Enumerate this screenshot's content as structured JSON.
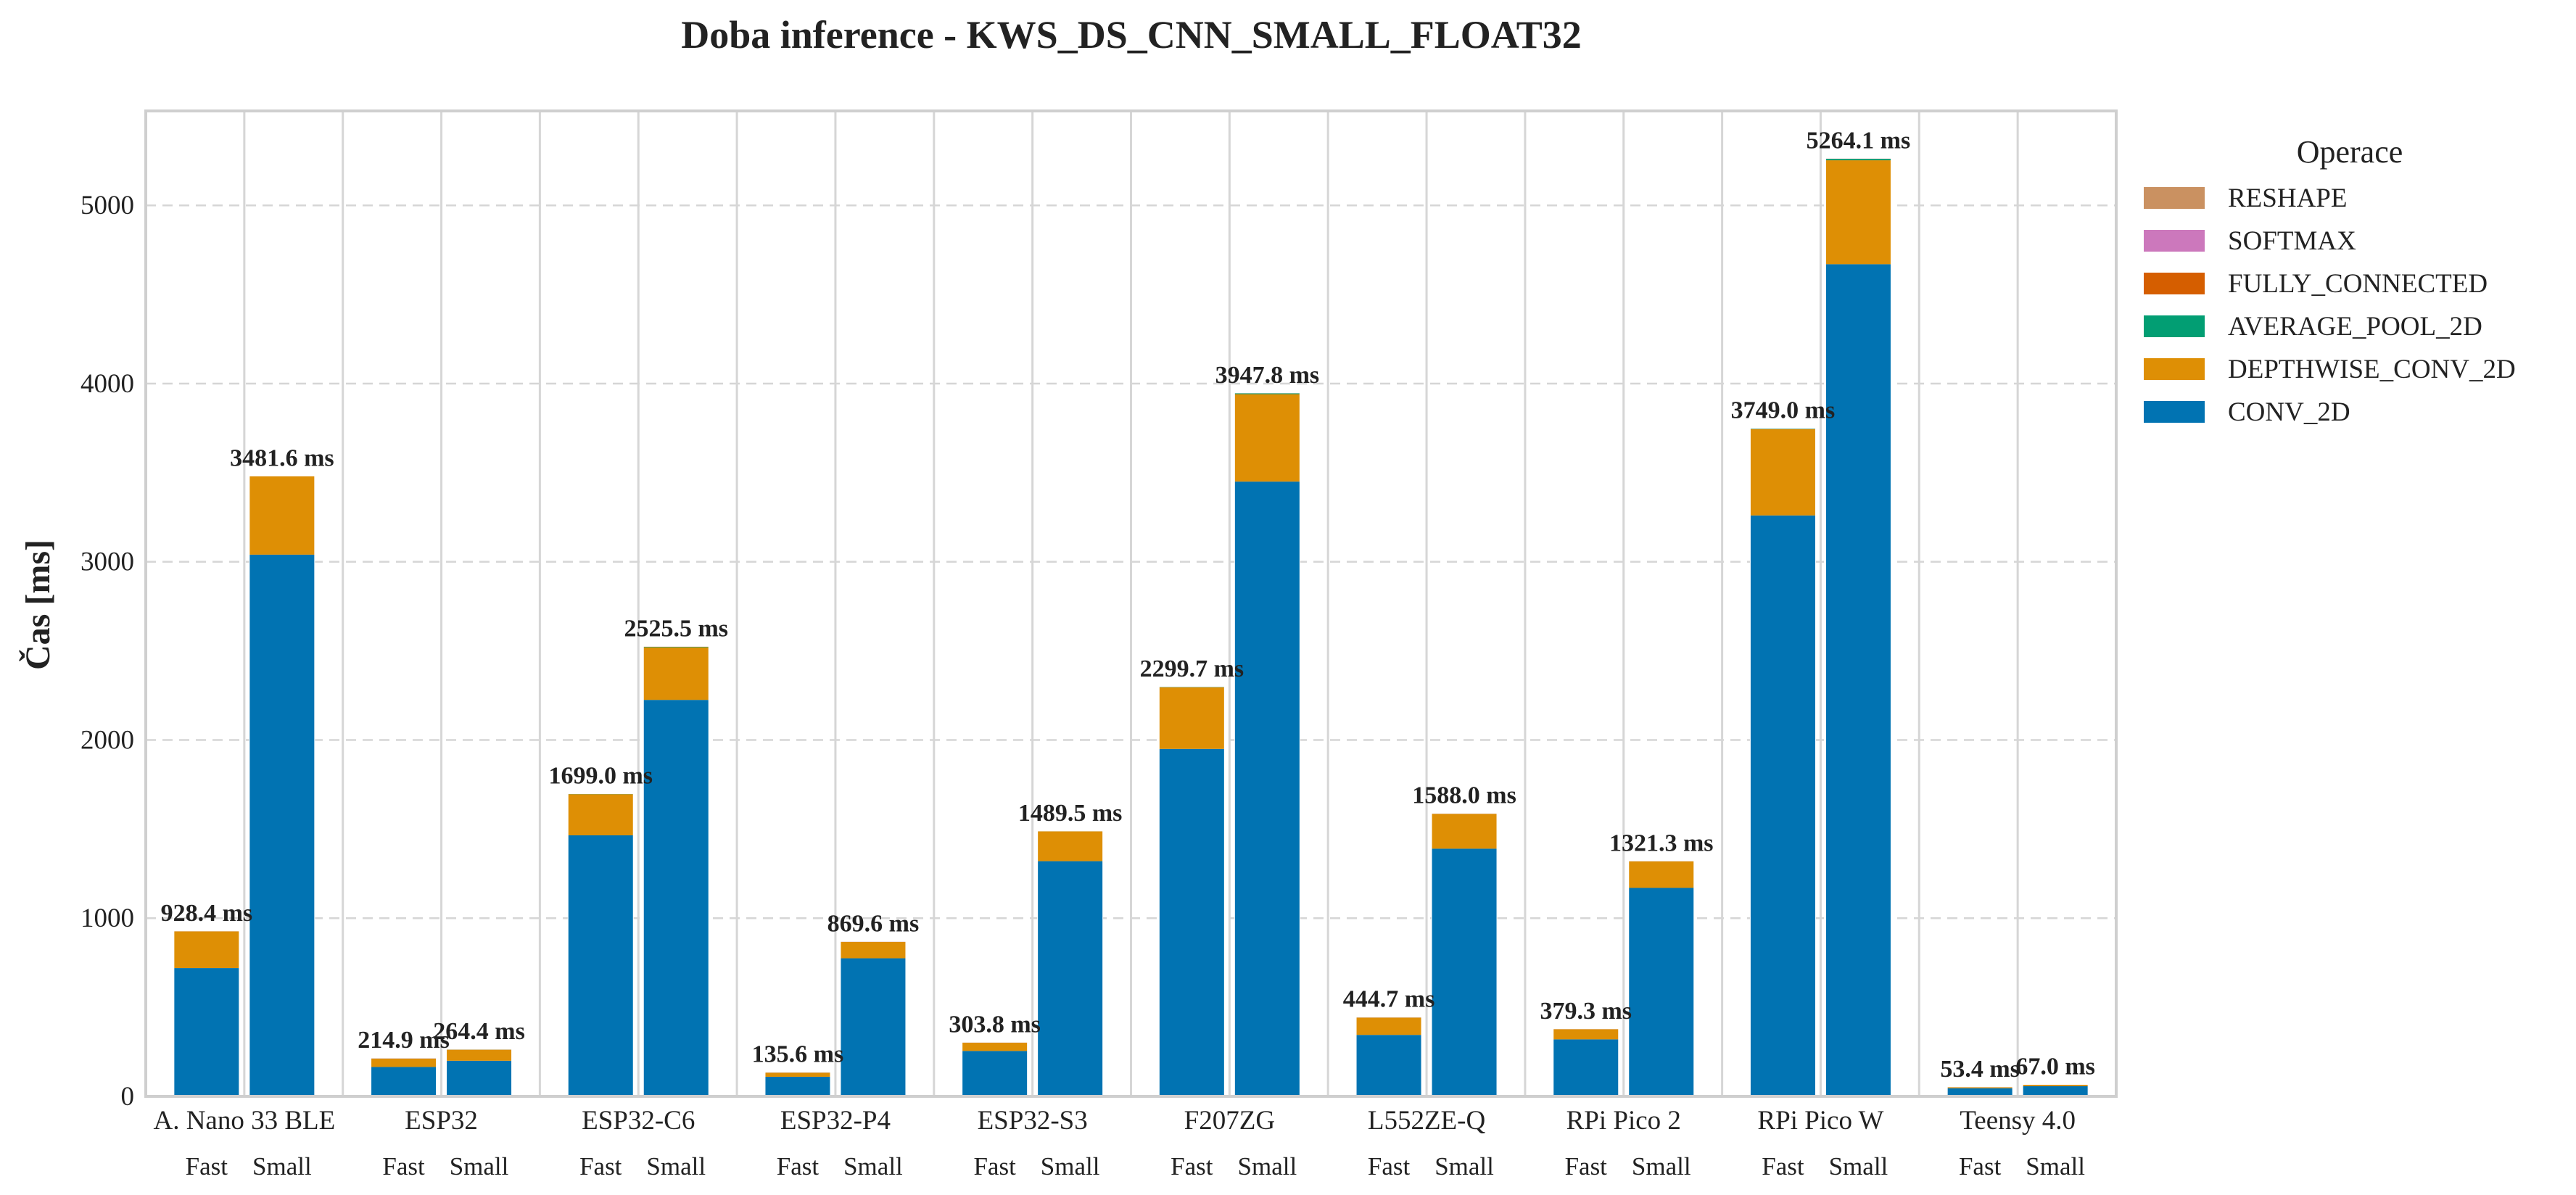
{
  "chart_data": {
    "type": "bar",
    "stacked": true,
    "title": "Doba inference - KWS_DS_CNN_SMALL_FLOAT32",
    "xlabel": "",
    "ylabel": "Čas [ms]",
    "ylim": [
      0,
      5530
    ],
    "yticks": [
      "0",
      "1000",
      "2000",
      "3000",
      "4000",
      "5000"
    ],
    "grid": "horizontal dashed",
    "legend": {
      "title": "Operace",
      "placement": "outside-right"
    },
    "categories": [
      "A. Nano 33 BLE",
      "ESP32",
      "ESP32-C6",
      "ESP32-P4",
      "ESP32-S3",
      "F207ZG",
      "L552ZE-Q",
      "RPi Pico 2",
      "RPi Pico W",
      "Teensy 4.0"
    ],
    "variants": [
      "Fast",
      "Small"
    ],
    "series": [
      {
        "name": "CONV_2D",
        "color": "#0173b2",
        "fast": [
          720,
          165,
          1465,
          110,
          255,
          1950,
          345,
          320,
          3260,
          46
        ],
        "small": [
          3040,
          200,
          2225,
          775,
          1320,
          3450,
          1390,
          1170,
          4670,
          57
        ]
      },
      {
        "name": "DEPTHWISE_CONV_2D",
        "color": "#de8f05",
        "fast": [
          206.4,
          48.4,
          231.0,
          24.7,
          48.2,
          345.7,
          98.6,
          58.7,
          484.0,
          7.1
        ],
        "small": [
          439.6,
          62.9,
          295.5,
          93.4,
          168.2,
          490.8,
          196.7,
          150.4,
          583.1,
          9.7
        ]
      },
      {
        "name": "AVERAGE_POOL_2D",
        "color": "#029e73",
        "fast": [
          1.8,
          1.3,
          2.0,
          0.8,
          0.4,
          3.0,
          0.8,
          0.4,
          4.0,
          0.2
        ],
        "small": [
          1.6,
          1.2,
          4.0,
          1.0,
          1.0,
          6.0,
          1.0,
          0.6,
          10.0,
          0.2
        ]
      },
      {
        "name": "FULLY_CONNECTED",
        "color": "#d55e00",
        "fast": [
          0.1,
          0.1,
          0.8,
          0.05,
          0.1,
          0.8,
          0.2,
          0.1,
          0.8,
          0.05
        ],
        "small": [
          0.3,
          0.2,
          0.8,
          0.1,
          0.2,
          0.8,
          0.2,
          0.2,
          0.8,
          0.05
        ]
      },
      {
        "name": "SOFTMAX",
        "color": "#cc78bc",
        "fast": [
          0.05,
          0.05,
          0.1,
          0.03,
          0.05,
          0.1,
          0.05,
          0.05,
          0.1,
          0.03
        ],
        "small": [
          0.05,
          0.05,
          0.1,
          0.03,
          0.05,
          0.1,
          0.05,
          0.05,
          0.1,
          0.03
        ]
      },
      {
        "name": "RESHAPE",
        "color": "#ca9161",
        "fast": [
          0.05,
          0.05,
          0.1,
          0.02,
          0.05,
          0.1,
          0.05,
          0.05,
          0.1,
          0.02
        ],
        "small": [
          0.05,
          0.05,
          0.1,
          0.02,
          0.05,
          0.1,
          0.05,
          0.05,
          0.1,
          0.02
        ]
      }
    ],
    "totals": {
      "fast": [
        "928.4 ms",
        "214.9 ms",
        "1699.0 ms",
        "135.6 ms",
        "303.8 ms",
        "2299.7 ms",
        "444.7 ms",
        "379.3 ms",
        "3749.0 ms",
        "53.4 ms"
      ],
      "small": [
        "3481.6 ms",
        "264.4 ms",
        "2525.5 ms",
        "869.6 ms",
        "1489.5 ms",
        "3947.8 ms",
        "1588.0 ms",
        "1321.3 ms",
        "5264.1 ms",
        "67.0 ms"
      ]
    },
    "total_values": {
      "fast": [
        928.4,
        214.9,
        1699.0,
        135.6,
        303.8,
        2299.7,
        444.7,
        379.3,
        3749.0,
        53.4
      ],
      "small": [
        3481.6,
        264.4,
        2525.5,
        869.6,
        1489.5,
        3947.8,
        1588.0,
        1321.3,
        5264.1,
        67.0
      ]
    },
    "legend_order": [
      "RESHAPE",
      "SOFTMAX",
      "FULLY_CONNECTED",
      "AVERAGE_POOL_2D",
      "DEPTHWISE_CONV_2D",
      "CONV_2D"
    ]
  }
}
